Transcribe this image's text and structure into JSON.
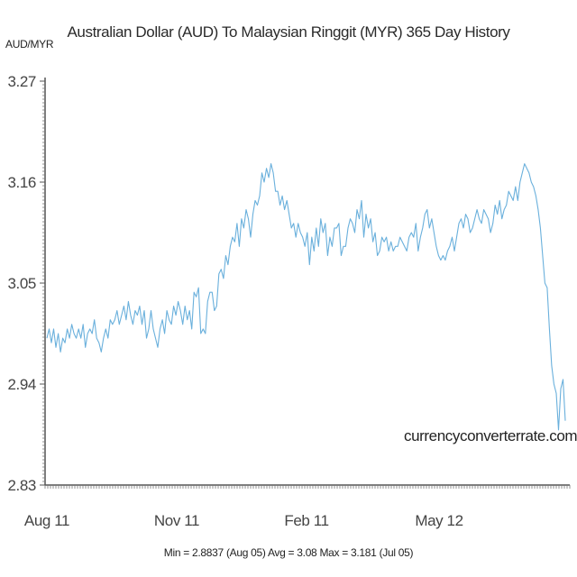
{
  "chart_data": {
    "type": "line",
    "title": "Australian Dollar (AUD) To Malaysian Ringgit (MYR) 365 Day History",
    "ylabel": "AUD/MYR",
    "xlabel": "",
    "ylim": [
      2.83,
      3.27
    ],
    "yticks": [
      "3.27",
      "3.16",
      "3.05",
      "2.94",
      "2.83"
    ],
    "xticks": [
      "Aug 11",
      "Nov 11",
      "Feb 11",
      "May 12"
    ],
    "grid": false,
    "legend": "none",
    "line_color": "#6ab0dc",
    "watermark": "currencyconverterrate.com",
    "stats_text": "Min = 2.8837 (Aug 05) Avg = 3.08 Max = 3.181 (Jul 05)",
    "series": [
      {
        "values": [
          2.99,
          3.0,
          2.985,
          3.0,
          2.98,
          2.995,
          2.975,
          2.99,
          2.985,
          3.0,
          2.99,
          3.005,
          2.995,
          2.99,
          3.0,
          2.99,
          3.005,
          2.98,
          2.995,
          3.0,
          2.995,
          3.01,
          2.99,
          2.985,
          2.975,
          2.99,
          3.0,
          2.99,
          3.01,
          3.005,
          3.01,
          3.02,
          3.005,
          3.015,
          3.025,
          3.01,
          3.03,
          3.015,
          3.005,
          3.02,
          3.015,
          3.025,
          3.005,
          3.02,
          2.99,
          3.0,
          3.02,
          3.0,
          2.99,
          2.98,
          3.0,
          3.01,
          2.995,
          3.02,
          3.01,
          3.005,
          3.025,
          3.015,
          3.03,
          3.02,
          3.005,
          3.025,
          3.01,
          3.02,
          3.0,
          3.04,
          3.035,
          3.045,
          2.995,
          3.0,
          2.995,
          3.03,
          3.04,
          3.04,
          3.02,
          3.025,
          3.06,
          3.065,
          3.055,
          3.08,
          3.07,
          3.09,
          3.1,
          3.095,
          3.115,
          3.09,
          3.12,
          3.11,
          3.13,
          3.12,
          3.1,
          3.125,
          3.14,
          3.135,
          3.145,
          3.17,
          3.16,
          3.175,
          3.165,
          3.18,
          3.17,
          3.15,
          3.15,
          3.135,
          3.145,
          3.13,
          3.14,
          3.125,
          3.11,
          3.115,
          3.1,
          3.115,
          3.105,
          3.1,
          3.09,
          3.105,
          3.07,
          3.1,
          3.085,
          3.11,
          3.09,
          3.12,
          3.105,
          3.115,
          3.08,
          3.1,
          3.09,
          3.11,
          3.11,
          3.115,
          3.08,
          3.09,
          3.09,
          3.11,
          3.12,
          3.115,
          3.105,
          3.13,
          3.12,
          3.14,
          3.1,
          3.125,
          3.11,
          3.12,
          3.095,
          3.105,
          3.08,
          3.085,
          3.1,
          3.095,
          3.1,
          3.085,
          3.095,
          3.085,
          3.09,
          3.09,
          3.1,
          3.095,
          3.09,
          3.085,
          3.1,
          3.105,
          3.1,
          3.115,
          3.085,
          3.1,
          3.11,
          3.125,
          3.13,
          3.11,
          3.12,
          3.105,
          3.09,
          3.08,
          3.075,
          3.08,
          3.075,
          3.085,
          3.09,
          3.1,
          3.085,
          3.1,
          3.115,
          3.12,
          3.11,
          3.125,
          3.12,
          3.105,
          3.11,
          3.12,
          3.13,
          3.12,
          3.115,
          3.13,
          3.125,
          3.12,
          3.105,
          3.115,
          3.135,
          3.125,
          3.14,
          3.12,
          3.13,
          3.135,
          3.15,
          3.145,
          3.14,
          3.155,
          3.14,
          3.16,
          3.17,
          3.18,
          3.175,
          3.17,
          3.16,
          3.155,
          3.145,
          3.13,
          3.11,
          3.08,
          3.05,
          3.045,
          3.0,
          2.96,
          2.94,
          2.93,
          2.89,
          2.935,
          2.945,
          2.9
        ]
      }
    ]
  }
}
